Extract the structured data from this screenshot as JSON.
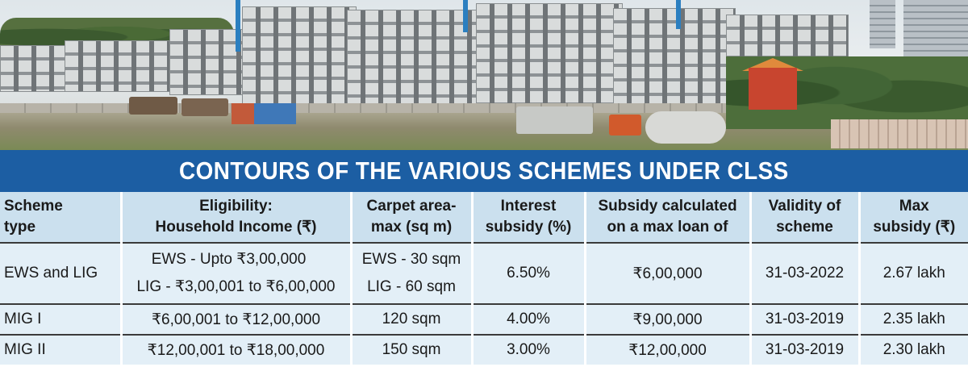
{
  "banner": {
    "title": "CONTOURS OF THE VARIOUS SCHEMES UNDER CLSS"
  },
  "table": {
    "headers": [
      [
        "Scheme",
        "type"
      ],
      [
        "Eligibility:",
        "Household Income (₹)"
      ],
      [
        "Carpet area-",
        "max (sq m)"
      ],
      [
        "Interest",
        "subsidy (%)"
      ],
      [
        "Subsidy calculated",
        "on a max loan of"
      ],
      [
        "Validity of",
        "scheme"
      ],
      [
        "Max",
        "subsidy (₹)"
      ]
    ],
    "rows": [
      {
        "scheme": "EWS and LIG",
        "income": [
          "EWS - Upto ₹3,00,000",
          "LIG - ₹3,00,001 to ₹6,00,000"
        ],
        "carpet": [
          "EWS - 30 sqm",
          "LIG - 60 sqm"
        ],
        "interest": "6.50%",
        "loan": "₹6,00,000",
        "validity": "31-03-2022",
        "max_subsidy": "2.67 lakh"
      },
      {
        "scheme": "MIG I",
        "income": "₹6,00,001 to ₹12,00,000",
        "carpet": "120 sqm",
        "interest": "4.00%",
        "loan": "₹9,00,000",
        "validity": "31-03-2019",
        "max_subsidy": "2.35 lakh"
      },
      {
        "scheme": "MIG II",
        "income": "₹12,00,001 to ₹18,00,000",
        "carpet": "150 sqm",
        "interest": "3.00%",
        "loan": "₹12,00,000",
        "validity": "31-03-2019",
        "max_subsidy": "2.30 lakh"
      }
    ]
  }
}
